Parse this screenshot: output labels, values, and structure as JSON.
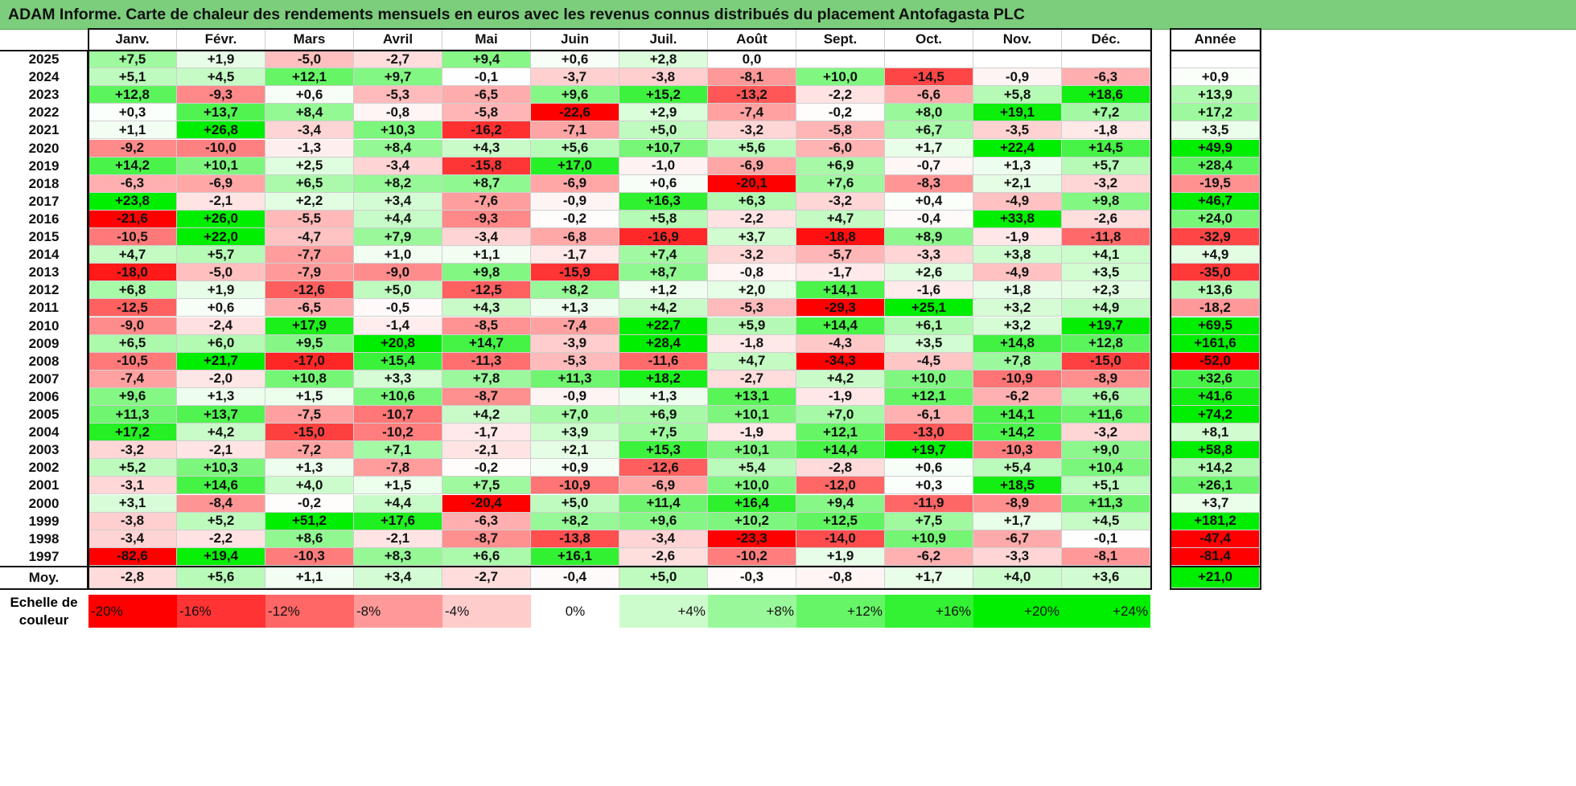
{
  "title": "ADAM Informe. Carte de chaleur des rendements mensuels en euros avec les revenus connus distribués du placement Antofagasta PLC",
  "colors": {
    "title_bg": "#7ccd7c",
    "neg_strong": "#ff0000",
    "pos_strong": "#00ee00",
    "neutral": "#ffffff"
  },
  "chart_data": {
    "type": "heatmap",
    "title": "ADAM Informe. Carte de chaleur des rendements mensuels en euros avec les revenus connus distribués du placement Antofagasta PLC",
    "months": [
      "Janv.",
      "Févr.",
      "Mars",
      "Avril",
      "Mai",
      "Juin",
      "Juil.",
      "Août",
      "Sept.",
      "Oct.",
      "Nov.",
      "Déc."
    ],
    "year_header": "Année",
    "avg_label": "Moy.",
    "rows": [
      {
        "year": "2025",
        "values": [
          "+7,5",
          "+1,9",
          "-5,0",
          "-2,7",
          "+9,4",
          "+0,6",
          "+2,8",
          "0,0",
          "",
          "",
          "",
          ""
        ],
        "annual": ""
      },
      {
        "year": "2024",
        "values": [
          "+5,1",
          "+4,5",
          "+12,1",
          "+9,7",
          "-0,1",
          "-3,7",
          "-3,8",
          "-8,1",
          "+10,0",
          "-14,5",
          "-0,9",
          "-6,3"
        ],
        "annual": "+0,9"
      },
      {
        "year": "2023",
        "values": [
          "+12,8",
          "-9,3",
          "+0,6",
          "-5,3",
          "-6,5",
          "+9,6",
          "+15,2",
          "-13,2",
          "-2,2",
          "-6,6",
          "+5,8",
          "+18,6"
        ],
        "annual": "+13,9"
      },
      {
        "year": "2022",
        "values": [
          "+0,3",
          "+13,7",
          "+8,4",
          "-0,8",
          "-5,8",
          "-22,6",
          "+2,9",
          "-7,4",
          "-0,2",
          "+8,0",
          "+19,1",
          "+7,2"
        ],
        "annual": "+17,2"
      },
      {
        "year": "2021",
        "values": [
          "+1,1",
          "+26,8",
          "-3,4",
          "+10,3",
          "-16,2",
          "-7,1",
          "+5,0",
          "-3,2",
          "-5,8",
          "+6,7",
          "-3,5",
          "-1,8"
        ],
        "annual": "+3,5"
      },
      {
        "year": "2020",
        "values": [
          "-9,2",
          "-10,0",
          "-1,3",
          "+8,4",
          "+4,3",
          "+5,6",
          "+10,7",
          "+5,6",
          "-6,0",
          "+1,7",
          "+22,4",
          "+14,5"
        ],
        "annual": "+49,9"
      },
      {
        "year": "2019",
        "values": [
          "+14,2",
          "+10,1",
          "+2,5",
          "-3,4",
          "-15,8",
          "+17,0",
          "-1,0",
          "-6,9",
          "+6,9",
          "-0,7",
          "+1,3",
          "+5,7"
        ],
        "annual": "+28,4"
      },
      {
        "year": "2018",
        "values": [
          "-6,3",
          "-6,9",
          "+6,5",
          "+8,2",
          "+8,7",
          "-6,9",
          "+0,6",
          "-20,1",
          "+7,6",
          "-8,3",
          "+2,1",
          "-3,2"
        ],
        "annual": "-19,5"
      },
      {
        "year": "2017",
        "values": [
          "+23,8",
          "-2,1",
          "+2,2",
          "+3,4",
          "-7,6",
          "-0,9",
          "+16,3",
          "+6,3",
          "-3,2",
          "+0,4",
          "-4,9",
          "+9,8"
        ],
        "annual": "+46,7"
      },
      {
        "year": "2016",
        "values": [
          "-21,6",
          "+26,0",
          "-5,5",
          "+4,4",
          "-9,3",
          "-0,2",
          "+5,8",
          "-2,2",
          "+4,7",
          "-0,4",
          "+33,8",
          "-2,6"
        ],
        "annual": "+24,0"
      },
      {
        "year": "2015",
        "values": [
          "-10,5",
          "+22,0",
          "-4,7",
          "+7,9",
          "-3,4",
          "-6,8",
          "-16,9",
          "+3,7",
          "-18,8",
          "+8,9",
          "-1,9",
          "-11,8"
        ],
        "annual": "-32,9"
      },
      {
        "year": "2014",
        "values": [
          "+4,7",
          "+5,7",
          "-7,7",
          "+1,0",
          "+1,1",
          "-1,7",
          "+7,4",
          "-3,2",
          "-5,7",
          "-3,3",
          "+3,8",
          "+4,1"
        ],
        "annual": "+4,9"
      },
      {
        "year": "2013",
        "values": [
          "-18,0",
          "-5,0",
          "-7,9",
          "-9,0",
          "+9,8",
          "-15,9",
          "+8,7",
          "-0,8",
          "-1,7",
          "+2,6",
          "-4,9",
          "+3,5"
        ],
        "annual": "-35,0"
      },
      {
        "year": "2012",
        "values": [
          "+6,8",
          "+1,9",
          "-12,6",
          "+5,0",
          "-12,5",
          "+8,2",
          "+1,2",
          "+2,0",
          "+14,1",
          "-1,6",
          "+1,8",
          "+2,3"
        ],
        "annual": "+13,6"
      },
      {
        "year": "2011",
        "values": [
          "-12,5",
          "+0,6",
          "-6,5",
          "-0,5",
          "+4,3",
          "+1,3",
          "+4,2",
          "-5,3",
          "-29,3",
          "+25,1",
          "+3,2",
          "+4,9"
        ],
        "annual": "-18,2"
      },
      {
        "year": "2010",
        "values": [
          "-9,0",
          "-2,4",
          "+17,9",
          "-1,4",
          "-8,5",
          "-7,4",
          "+22,7",
          "+5,9",
          "+14,4",
          "+6,1",
          "+3,2",
          "+19,7"
        ],
        "annual": "+69,5"
      },
      {
        "year": "2009",
        "values": [
          "+6,5",
          "+6,0",
          "+9,5",
          "+20,8",
          "+14,7",
          "-3,9",
          "+28,4",
          "-1,8",
          "-4,3",
          "+3,5",
          "+14,8",
          "+12,8"
        ],
        "annual": "+161,6"
      },
      {
        "year": "2008",
        "values": [
          "-10,5",
          "+21,7",
          "-17,0",
          "+15,4",
          "-11,3",
          "-5,3",
          "-11,6",
          "+4,7",
          "-34,3",
          "-4,5",
          "+7,8",
          "-15,0"
        ],
        "annual": "-52,0"
      },
      {
        "year": "2007",
        "values": [
          "-7,4",
          "-2,0",
          "+10,8",
          "+3,3",
          "+7,8",
          "+11,3",
          "+18,2",
          "-2,7",
          "+4,2",
          "+10,0",
          "-10,9",
          "-8,9"
        ],
        "annual": "+32,6"
      },
      {
        "year": "2006",
        "values": [
          "+9,6",
          "+1,3",
          "+1,5",
          "+10,6",
          "-8,7",
          "-0,9",
          "+1,3",
          "+13,1",
          "-1,9",
          "+12,1",
          "-6,2",
          "+6,6"
        ],
        "annual": "+41,6"
      },
      {
        "year": "2005",
        "values": [
          "+11,3",
          "+13,7",
          "-7,5",
          "-10,7",
          "+4,2",
          "+7,0",
          "+6,9",
          "+10,1",
          "+7,0",
          "-6,1",
          "+14,1",
          "+11,6"
        ],
        "annual": "+74,2"
      },
      {
        "year": "2004",
        "values": [
          "+17,2",
          "+4,2",
          "-15,0",
          "-10,2",
          "-1,7",
          "+3,9",
          "+7,5",
          "-1,9",
          "+12,1",
          "-13,0",
          "+14,2",
          "-3,2"
        ],
        "annual": "+8,1"
      },
      {
        "year": "2003",
        "values": [
          "-3,2",
          "-2,1",
          "-7,2",
          "+7,1",
          "-2,1",
          "+2,1",
          "+15,3",
          "+10,1",
          "+14,4",
          "+19,7",
          "-10,3",
          "+9,0"
        ],
        "annual": "+58,8"
      },
      {
        "year": "2002",
        "values": [
          "+5,2",
          "+10,3",
          "+1,3",
          "-7,8",
          "-0,2",
          "+0,9",
          "-12,6",
          "+5,4",
          "-2,8",
          "+0,6",
          "+5,4",
          "+10,4"
        ],
        "annual": "+14,2"
      },
      {
        "year": "2001",
        "values": [
          "-3,1",
          "+14,6",
          "+4,0",
          "+1,5",
          "+7,5",
          "-10,9",
          "-6,9",
          "+10,0",
          "-12,0",
          "+0,3",
          "+18,5",
          "+5,1"
        ],
        "annual": "+26,1"
      },
      {
        "year": "2000",
        "values": [
          "+3,1",
          "-8,4",
          "-0,2",
          "+4,4",
          "-20,4",
          "+5,0",
          "+11,4",
          "+16,4",
          "+9,4",
          "-11,9",
          "-8,9",
          "+11,3"
        ],
        "annual": "+3,7"
      },
      {
        "year": "1999",
        "values": [
          "-3,8",
          "+5,2",
          "+51,2",
          "+17,6",
          "-6,3",
          "+8,2",
          "+9,6",
          "+10,2",
          "+12,5",
          "+7,5",
          "+1,7",
          "+4,5"
        ],
        "annual": "+181,2"
      },
      {
        "year": "1998",
        "values": [
          "-3,4",
          "-2,2",
          "+8,6",
          "-2,1",
          "-8,7",
          "-13,8",
          "-3,4",
          "-23,3",
          "-14,0",
          "+10,9",
          "-6,7",
          "-0,1"
        ],
        "annual": "-47,4"
      },
      {
        "year": "1997",
        "values": [
          "-82,6",
          "+19,4",
          "-10,3",
          "+8,3",
          "+6,6",
          "+16,1",
          "-2,6",
          "-10,2",
          "+1,9",
          "-6,2",
          "-3,3",
          "-8,1"
        ],
        "annual": "-81,4"
      }
    ],
    "averages": [
      "-2,8",
      "+5,6",
      "+1,1",
      "+3,4",
      "-2,7",
      "-0,4",
      "+5,0",
      "-0,3",
      "-0,8",
      "+1,7",
      "+4,0",
      "+3,6"
    ],
    "avg_annual": "+21,0",
    "color_scale": {
      "label": "Echelle de couleur",
      "stops": [
        "-20%",
        "-16%",
        "-12%",
        "-8%",
        "-4%",
        "0%",
        "+4%",
        "+8%",
        "+12%",
        "+16%",
        "+20%",
        "+24%"
      ],
      "min": -20,
      "max": 24
    }
  }
}
